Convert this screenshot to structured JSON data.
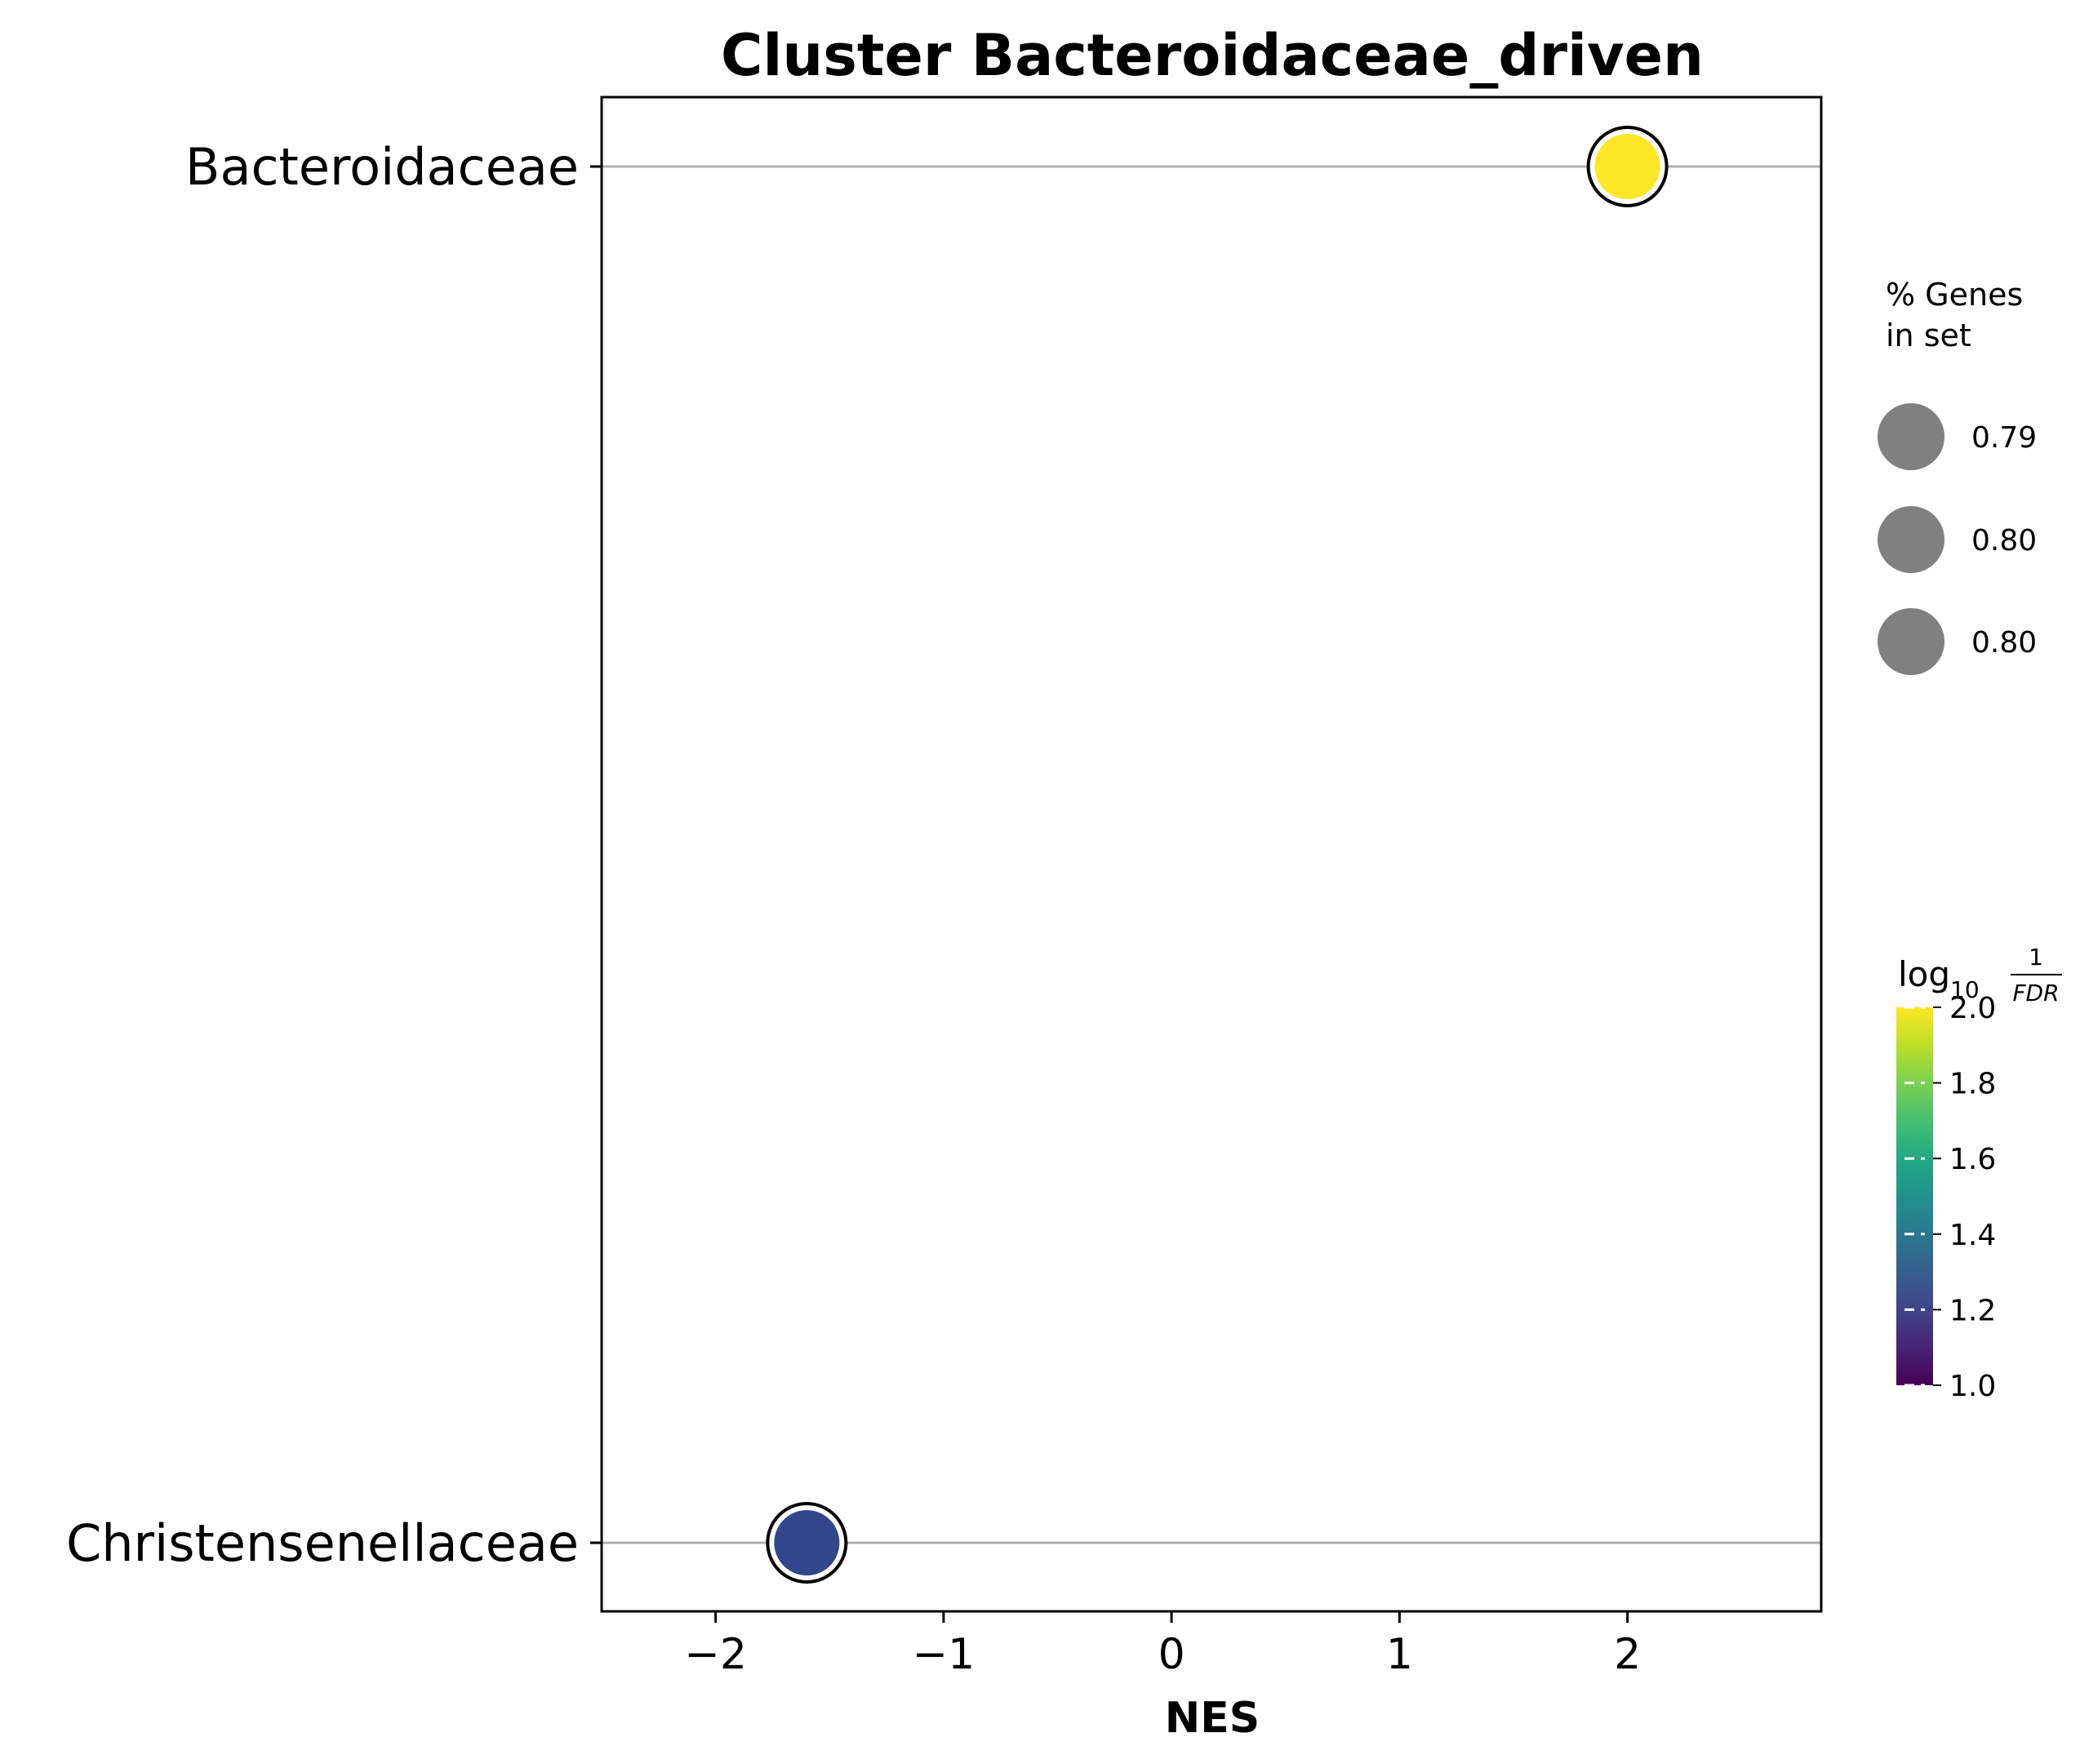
{
  "chart_data": {
    "type": "scatter",
    "title": "Cluster Bacteroidaceae_driven",
    "xlabel": "NES",
    "ylabel": "",
    "xlim": [
      -2.5,
      2.85
    ],
    "x_ticks": [
      "−2",
      "−1",
      "0",
      "1",
      "2"
    ],
    "x_tick_values": [
      -2,
      -1,
      0,
      1,
      2
    ],
    "categories": [
      "Bacteroidaceae",
      "Christensenellaceae"
    ],
    "grid": "horizontal lines at each category",
    "points": [
      {
        "label": "Bacteroidaceae",
        "nes": 2.0,
        "log10_inv_fdr": 2.0,
        "pct_genes": 0.8,
        "color": "#fde725"
      },
      {
        "label": "Christensenellaceae",
        "nes": -1.6,
        "log10_inv_fdr": 1.2,
        "pct_genes": 0.79,
        "color": "#31468b"
      }
    ],
    "size_legend": {
      "title_line1": "% Genes",
      "title_line2": "in set",
      "entries": [
        "0.79",
        "0.80",
        "0.80"
      ],
      "marker_color": "#808080",
      "placement": "right"
    },
    "colorbar": {
      "title_main": "log",
      "title_sub": "10",
      "title_num": "1",
      "title_den": "FDR",
      "range": [
        1.0,
        2.0
      ],
      "ticks": [
        "1.0",
        "1.2",
        "1.4",
        "1.6",
        "1.8",
        "2.0"
      ],
      "tick_values": [
        1.0,
        1.2,
        1.4,
        1.6,
        1.8,
        2.0
      ],
      "colormap": "viridis",
      "colormap_stops": [
        "#440154",
        "#482475",
        "#414487",
        "#355f8d",
        "#2a788e",
        "#21918c",
        "#22a884",
        "#44bf70",
        "#7ad151",
        "#bddf26",
        "#fde725"
      ],
      "placement": "right"
    }
  }
}
